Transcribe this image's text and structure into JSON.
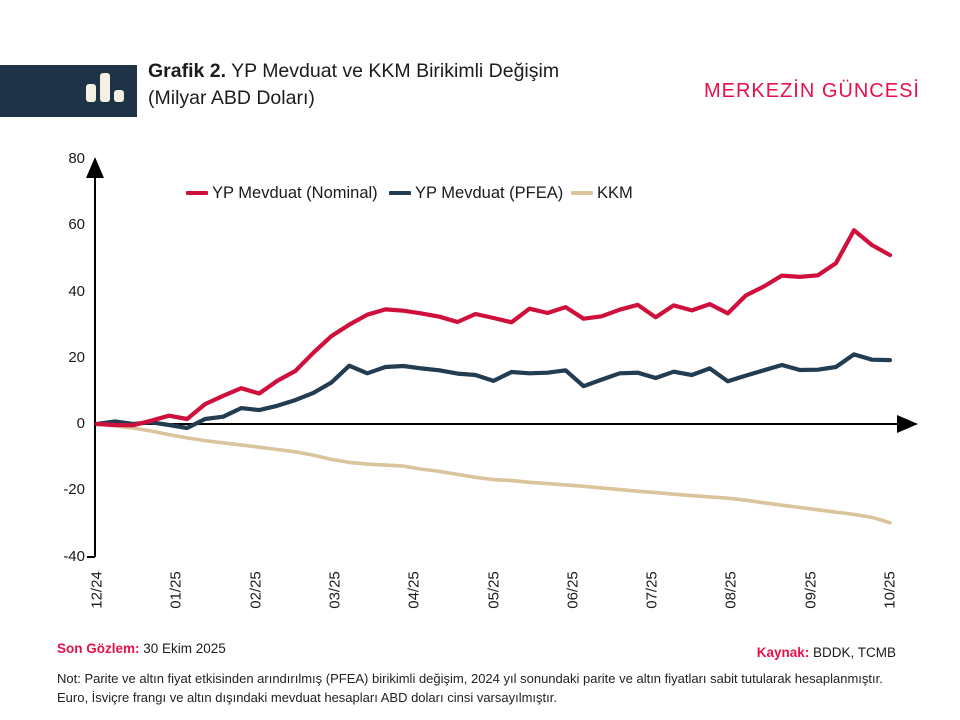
{
  "header": {
    "title_prefix": "Grafik 2.",
    "title_rest": " YP Mevduat ve KKM Birikimli Değişim",
    "title_line2": "(Milyar ABD Doları)",
    "brand": "MERKEZİN GÜNCESİ",
    "logo_icon": "bar-chart-icon"
  },
  "footer": {
    "last_obs_label": "Son Gözlem:",
    "last_obs_value": " 30 Ekim 2025",
    "source_label": "Kaynak:",
    "source_value": " BDDK, TCMB",
    "note": "Not: Parite ve altın fiyat etkisinden arındırılmış (PFEA) birikimli değişim, 2024 yıl sonundaki parite ve altın fiyatları sabit tutularak hesaplanmıştır. Euro, İsviçre frangı ve altın dışındaki mevduat hesapları ABD doları cinsi varsayılmıştır."
  },
  "colors": {
    "accent_red": "#d0103c",
    "brand_red": "#e8104b",
    "navy": "#223c52",
    "tan": "#d9c49c",
    "logo_box": "#1e3346",
    "axis": "#000000"
  },
  "chart_data": {
    "type": "line",
    "title": "Grafik 2. YP Mevduat ve KKM Birikimli Değişim (Milyar ABD Doları)",
    "xlabel": "",
    "ylabel": "Milyar ABD Doları",
    "ylim": [
      -40,
      80
    ],
    "y_ticks": [
      80,
      60,
      40,
      20,
      0,
      -20,
      -40
    ],
    "x_tick_labels": [
      "12/24",
      "01/25",
      "02/25",
      "03/25",
      "04/25",
      "05/25",
      "06/25",
      "07/25",
      "08/25",
      "09/25",
      "10/25"
    ],
    "x_unit": "weekly observations from 12/24 to 10/25",
    "grid": false,
    "legend_position": "top",
    "series": [
      {
        "name": "YP Mevduat (Nominal)",
        "color": "#d0103c",
        "values": [
          0,
          -0.3,
          -0.4,
          1.0,
          2.5,
          1.5,
          6.0,
          8.5,
          10.8,
          9.2,
          13.0,
          16.0,
          21.5,
          26.5,
          30.0,
          33.0,
          34.6,
          34.2,
          33.4,
          32.4,
          30.8,
          33.2,
          32.0,
          30.7,
          34.8,
          33.5,
          35.3,
          31.8,
          32.5,
          34.5,
          36.0,
          32.2,
          35.8,
          34.3,
          36.2,
          33.4,
          38.8,
          41.5,
          44.8,
          44.4,
          44.9,
          48.5,
          58.5,
          54.0,
          51.0
        ]
      },
      {
        "name": "YP Mevduat (PFEA)",
        "color": "#223c52",
        "values": [
          0,
          0.8,
          0.0,
          0.5,
          -0.3,
          -1.2,
          1.5,
          2.2,
          4.8,
          4.2,
          5.5,
          7.2,
          9.4,
          12.5,
          17.6,
          15.3,
          17.2,
          17.5,
          16.8,
          16.2,
          15.2,
          14.8,
          13.0,
          15.7,
          15.3,
          15.5,
          16.2,
          11.4,
          13.4,
          15.3,
          15.5,
          13.9,
          15.8,
          14.8,
          16.8,
          12.9,
          14.6,
          16.2,
          17.8,
          16.3,
          16.4,
          17.2,
          21.0,
          19.4,
          19.3
        ]
      },
      {
        "name": "KKM",
        "color": "#d9c49c",
        "values": [
          0,
          -0.6,
          -1.2,
          -2.1,
          -3.2,
          -4.2,
          -5.0,
          -5.7,
          -6.3,
          -7.0,
          -7.7,
          -8.4,
          -9.4,
          -10.7,
          -11.6,
          -12.1,
          -12.4,
          -12.7,
          -13.6,
          -14.3,
          -15.2,
          -16.1,
          -16.8,
          -17.1,
          -17.6,
          -18.0,
          -18.4,
          -18.8,
          -19.3,
          -19.8,
          -20.3,
          -20.7,
          -21.2,
          -21.6,
          -22.0,
          -22.4,
          -23.0,
          -23.8,
          -24.5,
          -25.2,
          -25.9,
          -26.6,
          -27.3,
          -28.2,
          -29.8
        ]
      }
    ]
  }
}
